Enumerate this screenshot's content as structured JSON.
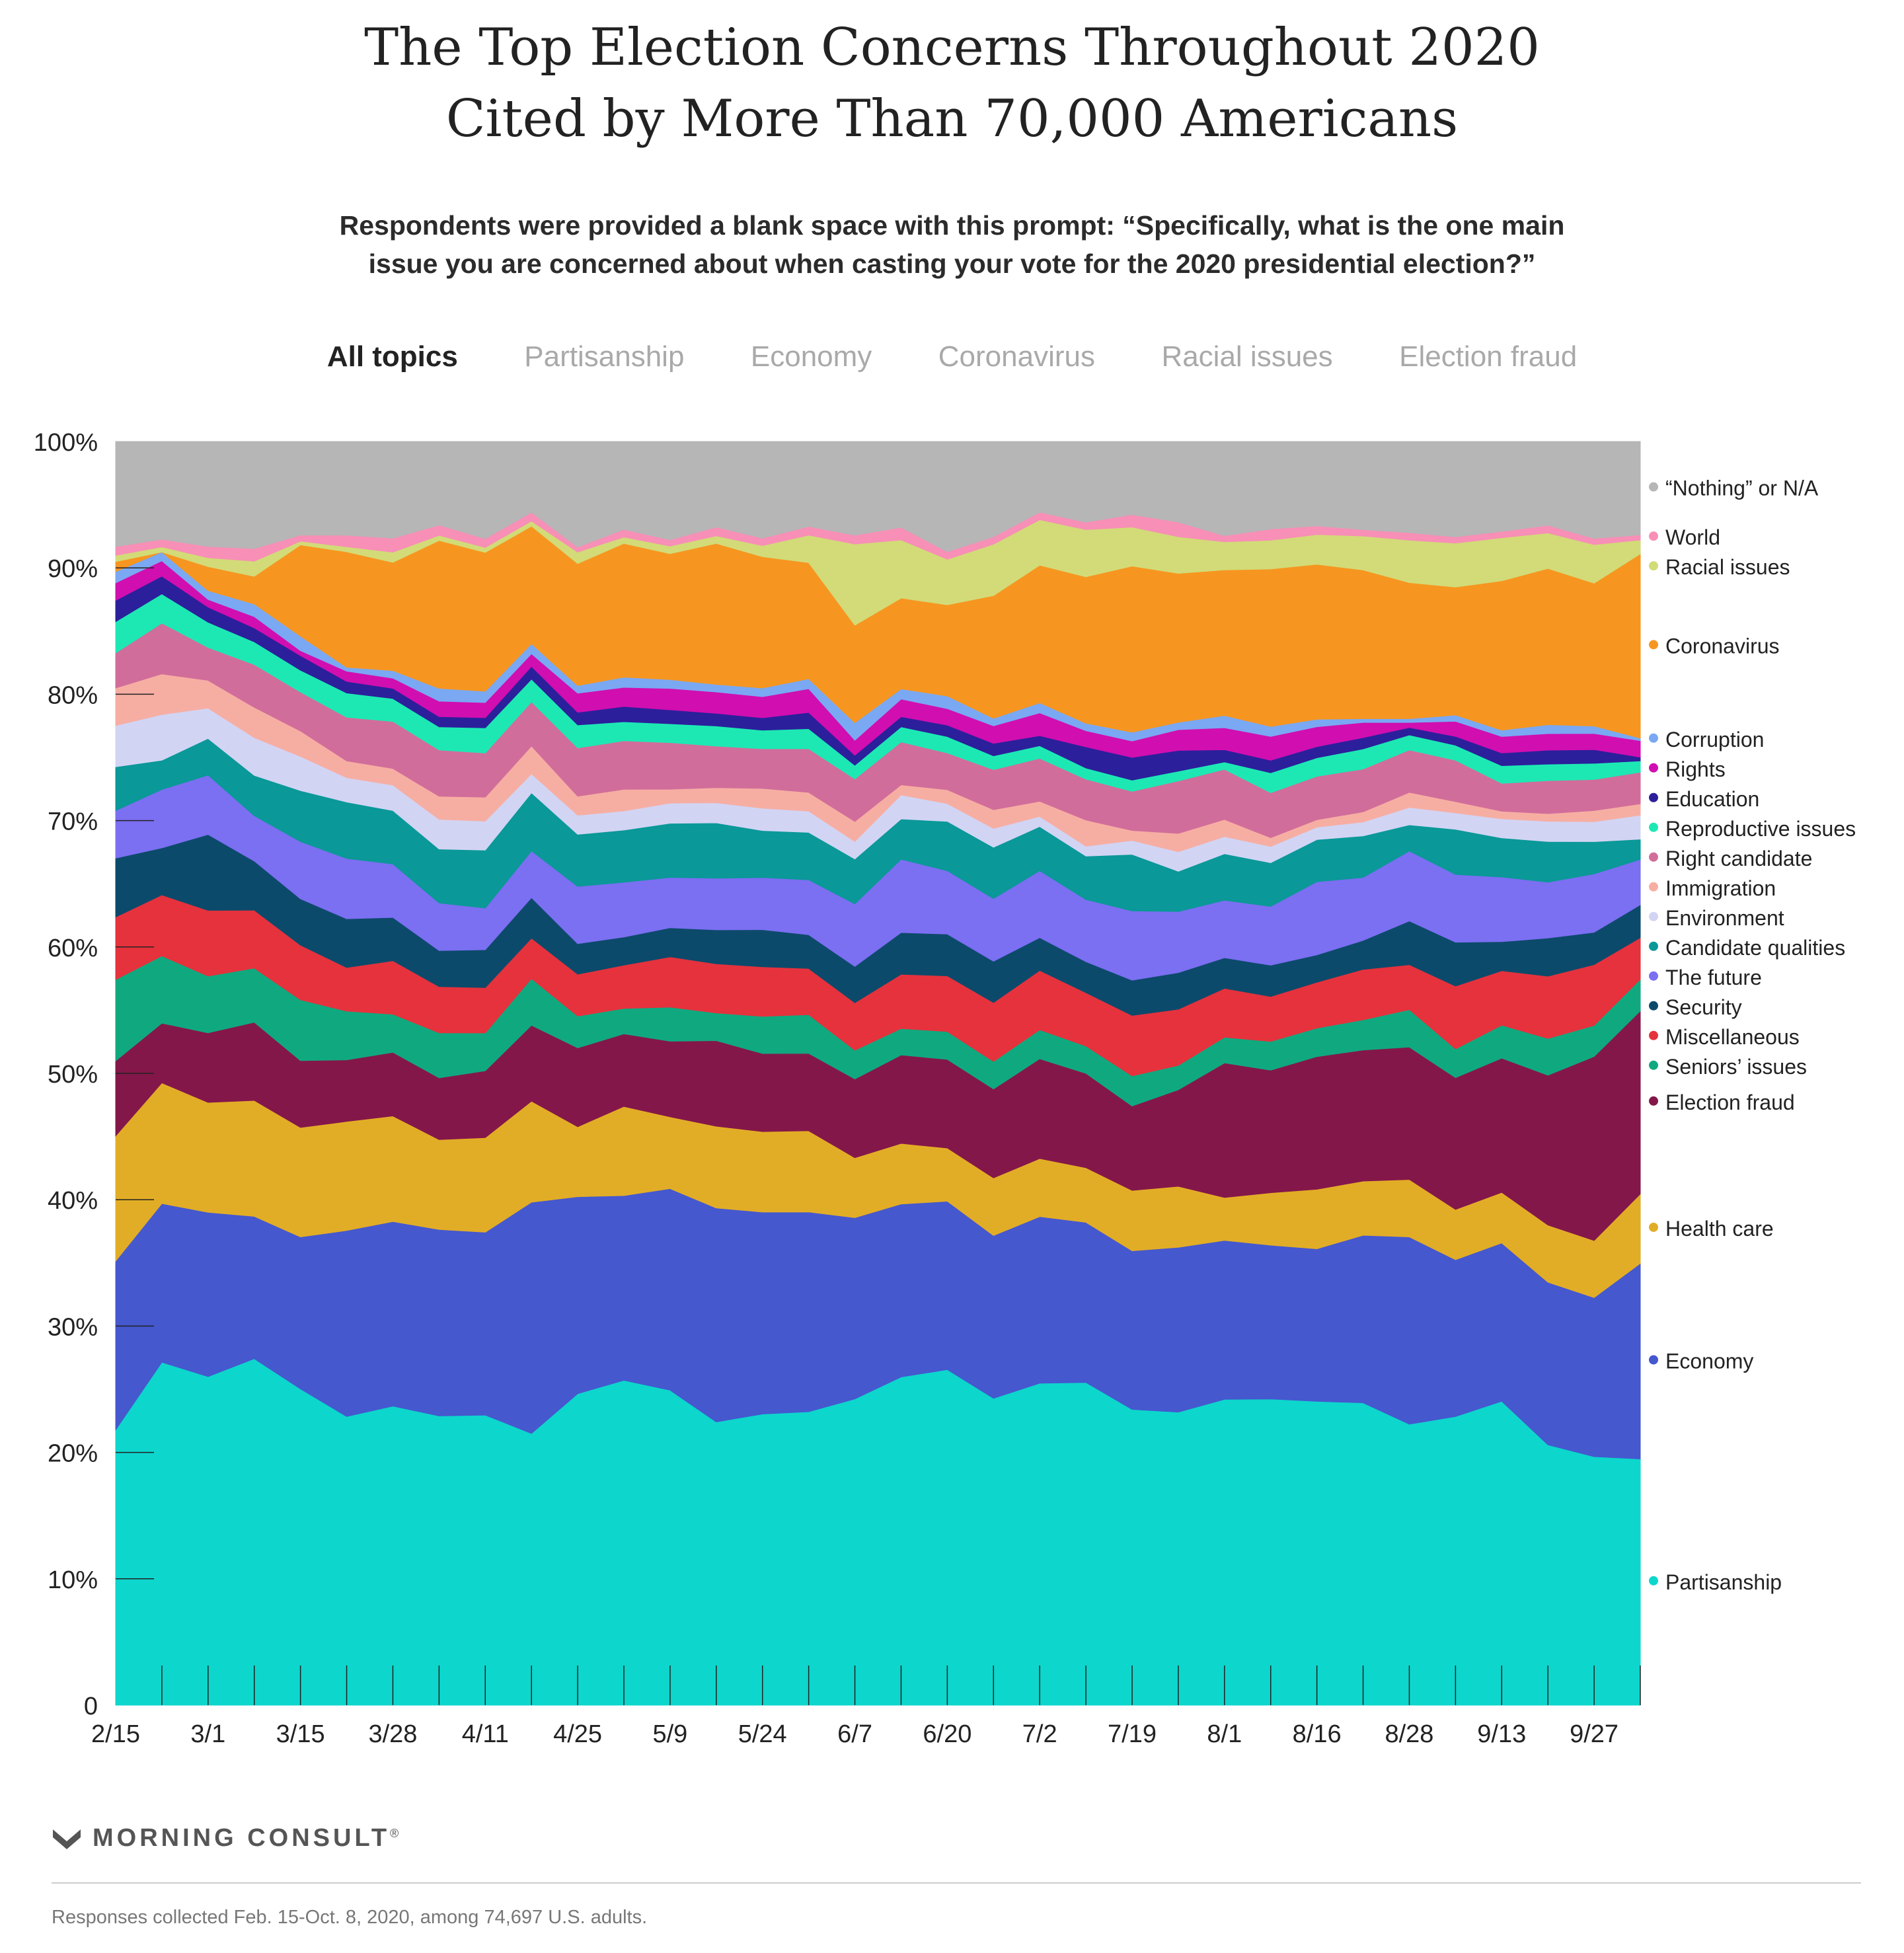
{
  "title_line1": "The Top Election Concerns Throughout 2020",
  "title_line2": "Cited by More Than 70,000 Americans",
  "subtitle_line1": "Respondents were provided a blank space with this prompt: “Specifically, what is the one main",
  "subtitle_line2": "issue you are concerned about when casting your vote for the 2020 presidential election?”",
  "tabs": [
    "All topics",
    "Partisanship",
    "Economy",
    "Coronavirus",
    "Racial issues",
    "Election fraud"
  ],
  "active_tab": "All topics",
  "logo_text": "MORNING CONSULT",
  "logo_mark": "®",
  "footnote": "Responses collected Feb. 15-Oct. 8, 2020, among 74,697 U.S. adults.",
  "chart_data": {
    "type": "area",
    "stacked": true,
    "normalized": true,
    "x": [
      "2/15",
      "2/22",
      "3/1",
      "3/8",
      "3/15",
      "3/22",
      "3/28",
      "4/4",
      "4/11",
      "4/18",
      "4/25",
      "5/2",
      "5/9",
      "5/16",
      "5/24",
      "5/31",
      "6/7",
      "6/14",
      "6/20",
      "6/27",
      "7/2",
      "7/9",
      "7/19",
      "7/26",
      "8/1",
      "8/8",
      "8/16",
      "8/22",
      "8/28",
      "9/4",
      "9/13",
      "9/20",
      "9/27",
      "10/4"
    ],
    "x_tick_labels": [
      "2/15",
      "3/1",
      "3/15",
      "3/28",
      "4/11",
      "4/25",
      "5/9",
      "5/24",
      "6/7",
      "6/20",
      "7/2",
      "7/19",
      "8/1",
      "8/16",
      "8/28",
      "9/13",
      "9/27"
    ],
    "y_ticks": [
      "0",
      "10%",
      "20%",
      "30%",
      "40%",
      "50%",
      "60%",
      "70%",
      "80%",
      "90%",
      "100%"
    ],
    "ylim": [
      0,
      100
    ],
    "legend_position": "right",
    "series": [
      {
        "name": "Partisanship",
        "color": "#0dd6cc",
        "values": [
          22,
          27,
          26,
          27.5,
          26,
          22.5,
          23.5,
          22.5,
          23,
          21.5,
          24.5,
          25.5,
          25,
          22.5,
          23.5,
          23.5,
          24.5,
          26,
          26.5,
          24.5,
          25.5,
          26,
          23.5,
          24,
          25,
          24.5,
          24.5,
          24,
          22.5,
          23,
          24,
          20.5,
          20,
          19.5
        ]
      },
      {
        "name": "Economy",
        "color": "#4558ce",
        "values": [
          13.5,
          12.5,
          13,
          11.3,
          12.5,
          14.5,
          14.5,
          14.5,
          14.5,
          18.3,
          15.5,
          14.5,
          16,
          17,
          16.3,
          16,
          14.5,
          13.7,
          13.3,
          13,
          13.2,
          12.9,
          12.6,
          13.5,
          13,
          12.3,
          12.3,
          13.3,
          15,
          12.5,
          12.5,
          12.8,
          12.8,
          15.5
        ]
      },
      {
        "name": "Health care",
        "color": "#e2ad26",
        "values": [
          10,
          9.5,
          8.7,
          9.2,
          9,
          8.5,
          8.3,
          7,
          7.5,
          8,
          5.5,
          7,
          5.7,
          6.5,
          6.5,
          6.5,
          4.8,
          4.8,
          4.2,
          4.6,
          4.6,
          4.4,
          4.8,
          5,
          3.5,
          4.2,
          4.8,
          4.3,
          4.6,
          4,
          4,
          4.5,
          4.6,
          5.5
        ]
      },
      {
        "name": "Election fraud",
        "color": "#84174a",
        "values": [
          6,
          4.7,
          5.5,
          6.2,
          5.5,
          4.8,
          5,
          4.8,
          5.3,
          6,
          6.2,
          5.7,
          6,
          6.8,
          6.3,
          6.2,
          6.3,
          7,
          7,
          7.1,
          7.9,
          7.6,
          6.7,
          7.9,
          11,
          9.8,
          10.7,
          10.4,
          10.6,
          10.5,
          10.6,
          11.8,
          14.8,
          14.5
        ]
      },
      {
        "name": "Seniors’ issues",
        "color": "#10a97f",
        "values": [
          6.5,
          5.3,
          4.5,
          4.3,
          5,
          3.8,
          3,
          3.5,
          3,
          3.7,
          2.5,
          2,
          2.7,
          2.2,
          3,
          3.1,
          2.3,
          2.1,
          2.2,
          2.2,
          2.3,
          2.2,
          2.4,
          2,
          2.1,
          2.3,
          2.3,
          2.4,
          3,
          2.3,
          2.6,
          2.9,
          2.5,
          2.5
        ]
      },
      {
        "name": "Miscellaneous",
        "color": "#e5323d",
        "values": [
          5,
          4.8,
          5.2,
          4.6,
          4.5,
          3.4,
          4.2,
          3.6,
          3.6,
          3.2,
          3.3,
          3.4,
          4,
          3.9,
          4,
          3.7,
          3.8,
          4.3,
          4.4,
          4.7,
          4.7,
          4.3,
          4.8,
          4.6,
          4,
          3.6,
          3.7,
          4,
          3.6,
          5,
          4.3,
          4.9,
          4.9,
          3.3
        ]
      },
      {
        "name": "Security",
        "color": "#0c4a6b",
        "values": [
          4.7,
          3.7,
          6,
          3.9,
          3.8,
          3.8,
          3.4,
          2.8,
          3,
          3.2,
          2.4,
          2.2,
          2.3,
          2.7,
          3,
          2.7,
          2.9,
          3.3,
          3.3,
          3.3,
          2.6,
          2.5,
          2.8,
          3,
          2.5,
          2.5,
          2.2,
          2.3,
          3.5,
          3.5,
          2.3,
          3,
          2.6,
          2.6
        ]
      },
      {
        "name": "The future",
        "color": "#7b6ff2",
        "values": [
          3.8,
          4.6,
          4.7,
          3.6,
          4.7,
          4.7,
          4.2,
          3.7,
          3.3,
          3.7,
          4.5,
          4.3,
          4,
          4.1,
          4.2,
          4.4,
          5,
          5.8,
          5,
          5,
          5.3,
          5,
          5.5,
          5,
          4.7,
          4.7,
          5.9,
          5,
          5.6,
          5.4,
          5.1,
          4.4,
          4.7,
          3.6
        ]
      },
      {
        "name": "Candidate qualities",
        "color": "#0a9898",
        "values": [
          3.5,
          2.3,
          2.9,
          3.2,
          4.2,
          4.4,
          4.2,
          4.2,
          4.6,
          4.6,
          4.1,
          4.1,
          4.3,
          4.4,
          3.8,
          3.8,
          3.6,
          3.2,
          3.9,
          4.1,
          3.5,
          3.5,
          4.5,
          3.3,
          3.8,
          3.5,
          3.4,
          3.3,
          2.1,
          3.6,
          3.1,
          3.2,
          2.6,
          1.6
        ]
      },
      {
        "name": "Environment",
        "color": "#d2d4f4",
        "values": [
          3.3,
          3.6,
          2.4,
          3,
          2.8,
          1.9,
          2,
          2.3,
          2.3,
          1.5,
          1.5,
          1.5,
          1.6,
          1.6,
          1.8,
          1.7,
          1.4,
          1.9,
          1.4,
          1.5,
          0.8,
          0.8,
          1.1,
          1.6,
          1.4,
          1.3,
          1,
          1.1,
          1.4,
          1.3,
          1.5,
          1.6,
          1.6,
          1.9
        ]
      },
      {
        "name": "Immigration",
        "color": "#f6aea3",
        "values": [
          3,
          3.2,
          2.2,
          2.4,
          2.1,
          1.3,
          1.3,
          1.8,
          1.9,
          2.2,
          1.5,
          1.7,
          1.1,
          1.2,
          1.6,
          1.5,
          1.6,
          0.8,
          1.1,
          1.5,
          1.2,
          2.1,
          0.8,
          1.5,
          1.4,
          0.7,
          0.6,
          0.8,
          1.2,
          0.9,
          0.6,
          0.6,
          0.9,
          0.9
        ]
      },
      {
        "name": "Right candidate",
        "color": "#d16d9a",
        "values": [
          2.8,
          4,
          2.6,
          3.4,
          3.2,
          3.4,
          3.7,
          3.6,
          3.5,
          3.5,
          3.8,
          3.8,
          3.7,
          3.3,
          3.2,
          3.5,
          3.4,
          3.4,
          2.9,
          3.2,
          3.4,
          3.3,
          3.1,
          4.3,
          4.1,
          3.6,
          3.5,
          3.4,
          3.4,
          3.3,
          2.2,
          2.6,
          2.5,
          2.5
        ]
      },
      {
        "name": "Reproductive issues",
        "color": "#1de8b4",
        "values": [
          2.5,
          2.3,
          2,
          1.8,
          1.8,
          1.9,
          1.8,
          1.8,
          2,
          1.8,
          1.8,
          1.5,
          1.5,
          1.6,
          1.5,
          1.6,
          1.1,
          1.2,
          1.3,
          1.1,
          1,
          0.9,
          0.9,
          0.8,
          0.6,
          1.6,
          1.5,
          1.6,
          1.2,
          1.2,
          1.4,
          1.3,
          1.3,
          0.9
        ]
      },
      {
        "name": "Education",
        "color": "#2c1f9b",
        "values": [
          1.7,
          1.4,
          1.2,
          1.1,
          1.2,
          0.9,
          0.8,
          0.8,
          0.8,
          1,
          1,
          1.2,
          1.1,
          1,
          1,
          1.3,
          0.8,
          0.8,
          0.9,
          1,
          0.8,
          1.7,
          1.8,
          1.7,
          1,
          1,
          0.9,
          0.9,
          0.6,
          0.7,
          1,
          1.1,
          1.1,
          0.3
        ]
      },
      {
        "name": "Rights",
        "color": "#d10eb0",
        "values": [
          1.4,
          1.2,
          0.6,
          0.9,
          0.4,
          0.8,
          0.8,
          1.2,
          1.2,
          1,
          1.5,
          1.5,
          1.7,
          1.7,
          1.7,
          1.9,
          1.2,
          1.4,
          1.3,
          1.4,
          1.8,
          1.3,
          1.3,
          1.7,
          1.8,
          1.9,
          1.6,
          1.2,
          0.4,
          1.2,
          1.3,
          1.3,
          1.3,
          1.3
        ]
      },
      {
        "name": "Corruption",
        "color": "#7aa8f2",
        "values": [
          0.9,
          0.7,
          0.7,
          1,
          1.2,
          0.3,
          0.6,
          1,
          0.9,
          0.8,
          0.6,
          0.8,
          0.7,
          0.6,
          0.7,
          0.8,
          1.4,
          0.8,
          1,
          0.6,
          0.8,
          0.6,
          0.7,
          0.6,
          1,
          0.8,
          0.6,
          0.3,
          0.3,
          0.5,
          0.5,
          0.7,
          0.6,
          0.2
        ]
      },
      {
        "name": "Coronavirus",
        "color": "#f69620",
        "values": [
          0.8,
          0,
          1.9,
          2.2,
          7.5,
          9,
          8.5,
          11.5,
          11,
          9.3,
          9.6,
          10.5,
          10,
          11.2,
          10.6,
          9.3,
          7.8,
          7.2,
          7.2,
          9.8,
          10.9,
          11.8,
          13.2,
          12.2,
          11.9,
          12.6,
          12.5,
          11.8,
          10.9,
          10.2,
          11.8,
          12.3,
          11.5,
          14.6
        ]
      },
      {
        "name": "Racial issues",
        "color": "#d2db78",
        "values": [
          0.5,
          0.4,
          0.7,
          1.2,
          0.3,
          0.4,
          0.8,
          0.4,
          0.4,
          0.4,
          0.9,
          0.5,
          0.6,
          0.6,
          0.9,
          2.2,
          6.5,
          4.6,
          3.6,
          4.1,
          3.6,
          3.8,
          3.1,
          3,
          2.3,
          2.3,
          2.4,
          2.7,
          3.4,
          3.5,
          3.4,
          2.8,
          3.1,
          1.1
        ]
      },
      {
        "name": "World",
        "color": "#f78fb6",
        "values": [
          0.7,
          0.6,
          0.9,
          1,
          0.5,
          0.9,
          1.1,
          0.8,
          0.7,
          0.7,
          0.4,
          0.6,
          0.5,
          0.7,
          0.6,
          0.7,
          0.7,
          1,
          0.6,
          0.6,
          0.6,
          0.6,
          1,
          1.2,
          0.5,
          0.9,
          0.7,
          0.5,
          0.6,
          0.5,
          0.5,
          0.6,
          0.5,
          0.4
        ]
      },
      {
        "name": "“Nothing” or N/A",
        "color": "#b6b6b6",
        "values": [
          8.4,
          7.7,
          8.3,
          8.5,
          7.7,
          7.3,
          7.6,
          6.5,
          7.7,
          5.6,
          8.3,
          6.9,
          7.8,
          6.8,
          7.8,
          6.8,
          7.5,
          6.8,
          8.7,
          7.6,
          5.6,
          6.5,
          5.8,
          6.6,
          7.7,
          7,
          6.8,
          7,
          7.3,
          7.6,
          7.1,
          6.6,
          7.8,
          7.4
        ]
      }
    ]
  }
}
